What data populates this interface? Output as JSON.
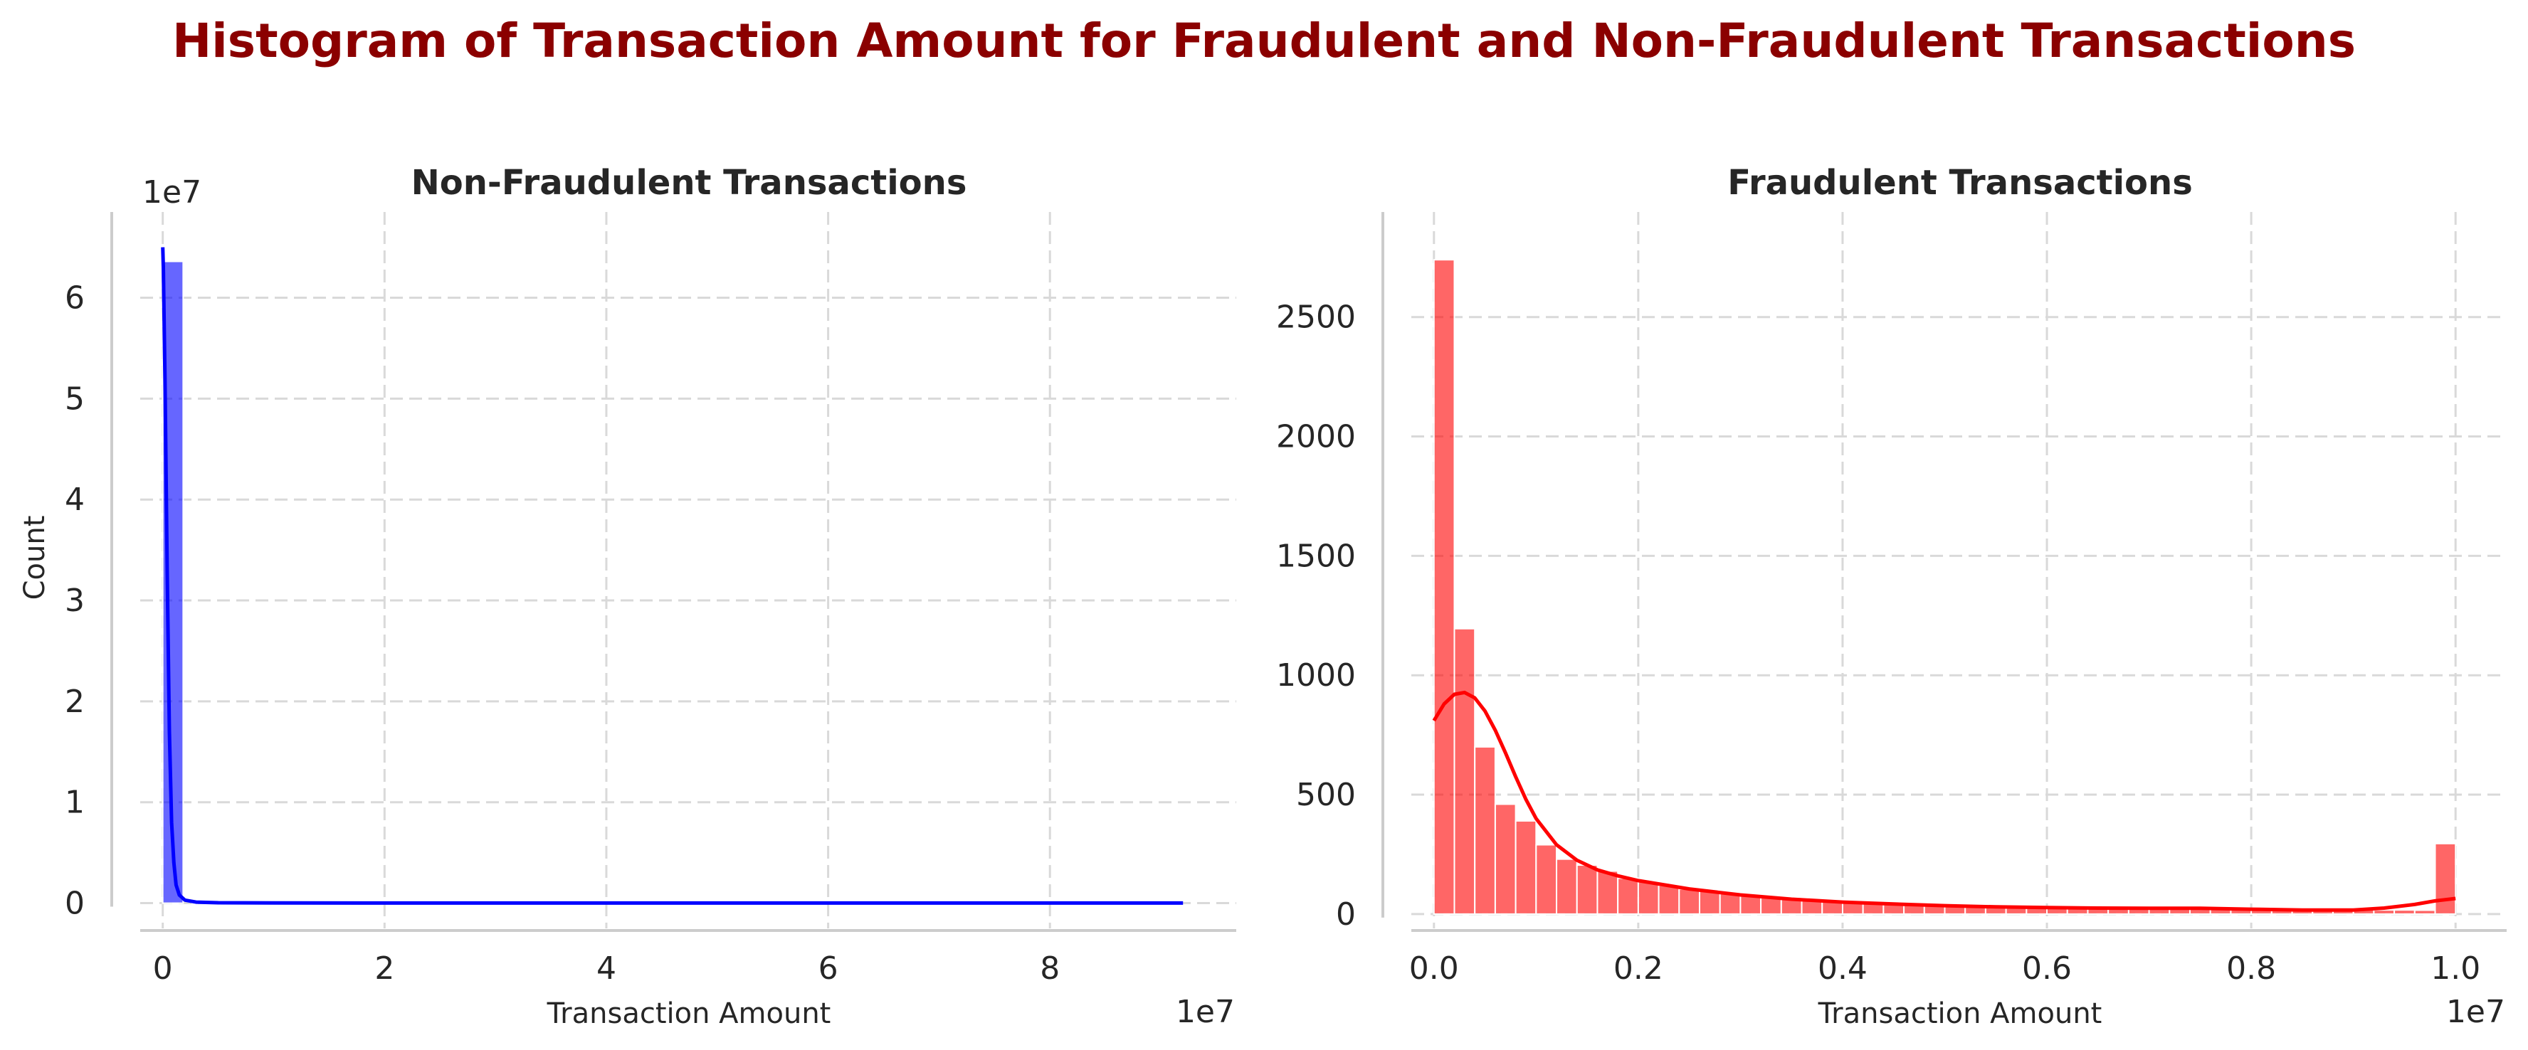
{
  "chart_data": {
    "title": "Histogram of Transaction Amount for Fraudulent and Non-Fraudulent Transactions",
    "title_color": "#8b0000",
    "grid": true,
    "panels": [
      {
        "type": "bar",
        "subtype": "histogram_with_kde",
        "title": "Non-Fraudulent Transactions",
        "xlabel": "Transaction Amount",
        "ylabel": "Count",
        "x_offset_label": "1e7",
        "y_offset_label": "1e7",
        "xlim": [
          -0.46,
          9.68
        ],
        "ylim": [
          -0.25,
          6.85
        ],
        "xticks": [
          0,
          2,
          4,
          6,
          8
        ],
        "xtick_labels": [
          "0",
          "2",
          "4",
          "6",
          "8"
        ],
        "yticks": [
          0,
          1,
          2,
          3,
          4,
          5,
          6
        ],
        "ytick_labels": [
          "0",
          "1",
          "2",
          "3",
          "4",
          "5",
          "6"
        ],
        "color": "#0000ff",
        "bins": [
          {
            "x0": 0.0,
            "x1": 0.184,
            "count": 6.36
          }
        ],
        "kde": {
          "x": [
            0,
            0.005,
            0.02,
            0.04,
            0.06,
            0.08,
            0.1,
            0.12,
            0.15,
            0.2,
            0.3,
            0.5,
            1,
            3,
            6,
            9.2
          ],
          "y": [
            6.5,
            6.3,
            5.2,
            3.3,
            1.7,
            0.8,
            0.4,
            0.18,
            0.08,
            0.03,
            0.01,
            0.004,
            0.002,
            0.001,
            0.001,
            0.001
          ]
        },
        "offsets": {
          "x": "1e7",
          "y": "1e7"
        }
      },
      {
        "type": "bar",
        "subtype": "histogram_with_kde",
        "title": "Fraudulent Transactions",
        "xlabel": "Transaction Amount",
        "ylabel": "",
        "x_offset_label": "1e7",
        "xlim": [
          -0.05,
          1.05
        ],
        "ylim": [
          -60,
          2940
        ],
        "xticks": [
          0.0,
          0.2,
          0.4,
          0.6,
          0.8,
          1.0
        ],
        "xtick_labels": [
          "0.0",
          "0.2",
          "0.4",
          "0.6",
          "0.8",
          "1.0"
        ],
        "yticks": [
          0,
          500,
          1000,
          1500,
          2000,
          2500
        ],
        "ytick_labels": [
          "0",
          "500",
          "1000",
          "1500",
          "2000",
          "2500"
        ],
        "color": "#ff0000",
        "bin_width": 0.02,
        "bin_counts": [
          2740,
          1195,
          700,
          460,
          390,
          290,
          230,
          205,
          180,
          150,
          135,
          120,
          105,
          95,
          85,
          80,
          75,
          70,
          65,
          60,
          55,
          50,
          48,
          45,
          42,
          40,
          38,
          36,
          34,
          32,
          30,
          29,
          28,
          27,
          26,
          25,
          24,
          23,
          22,
          21,
          20,
          20,
          19,
          19,
          18,
          18,
          17,
          17,
          16,
          295
        ],
        "kde": {
          "x": [
            0,
            0.01,
            0.02,
            0.03,
            0.04,
            0.05,
            0.06,
            0.07,
            0.08,
            0.09,
            0.1,
            0.12,
            0.14,
            0.16,
            0.18,
            0.2,
            0.25,
            0.3,
            0.35,
            0.4,
            0.45,
            0.5,
            0.55,
            0.6,
            0.65,
            0.7,
            0.75,
            0.8,
            0.85,
            0.9,
            0.93,
            0.96,
            0.98,
            1.0
          ],
          "y": [
            810,
            880,
            920,
            928,
            905,
            850,
            770,
            675,
            575,
            480,
            400,
            290,
            225,
            185,
            160,
            140,
            105,
            80,
            62,
            50,
            42,
            35,
            30,
            27,
            25,
            24,
            24,
            20,
            17,
            17,
            25,
            40,
            55,
            65
          ]
        },
        "offsets": {
          "x": "1e7"
        }
      }
    ]
  }
}
